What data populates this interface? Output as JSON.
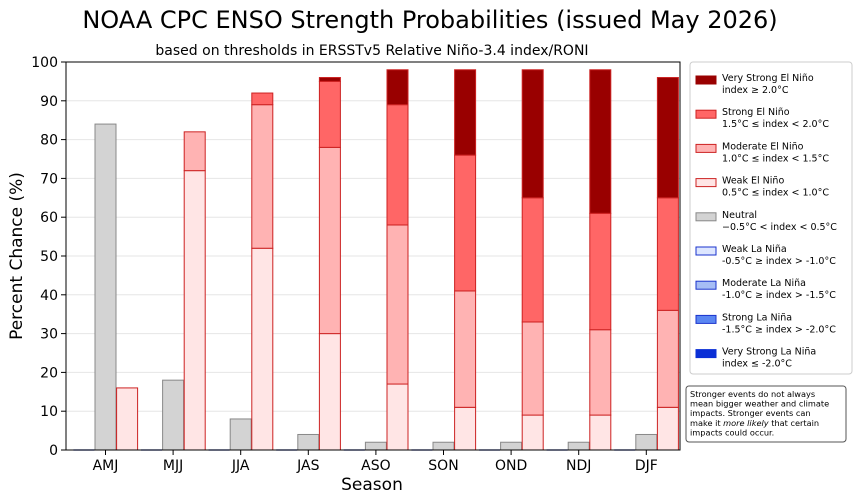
{
  "chart_data": {
    "type": "bar",
    "title": "NOAA CPC ENSO Strength Probabilities (issued May 2026)",
    "subtitle": "based on thresholds in ERSSTv5 Relative Niño-3.4 index/RONI",
    "xlabel": "Season",
    "ylabel": "Percent Chance (%)",
    "ylim": [
      0,
      100
    ],
    "yticks": [
      0,
      10,
      20,
      30,
      40,
      50,
      60,
      70,
      80,
      90,
      100
    ],
    "grid": "horizontal",
    "legend_position": "right",
    "categories": [
      "AMJ",
      "MJJ",
      "JJA",
      "JAS",
      "ASO",
      "SON",
      "OND",
      "NDJ",
      "DJF"
    ],
    "neutral": [
      84,
      18,
      8,
      4,
      2,
      2,
      2,
      2,
      4
    ],
    "la_nina_stack": [
      0,
      0,
      0,
      0,
      0,
      0,
      0,
      0,
      0
    ],
    "el_nino_stack": [
      {
        "name": "Weak El Niño",
        "values": [
          16,
          72,
          52,
          30,
          17,
          11,
          9,
          9,
          11
        ]
      },
      {
        "name": "Moderate El Niño",
        "values": [
          0,
          10,
          37,
          48,
          41,
          30,
          24,
          22,
          25
        ]
      },
      {
        "name": "Strong El Niño",
        "values": [
          0,
          0,
          3,
          17,
          31,
          35,
          32,
          30,
          29
        ]
      },
      {
        "name": "Very Strong El Niño",
        "values": [
          0,
          0,
          0,
          1,
          9,
          22,
          33,
          37,
          31
        ]
      }
    ],
    "legend": [
      {
        "line1": "Very Strong El Niño",
        "line2": "index ≥ 2.0°C",
        "color": "#990000",
        "edge": "#990000"
      },
      {
        "line1": "Strong El Niño",
        "line2": "1.5°C ≤ index < 2.0°C",
        "color": "#ff6666",
        "edge": "#cc2222"
      },
      {
        "line1": "Moderate El Niño",
        "line2": "1.0°C ≤ index < 1.5°C",
        "color": "#ffb3b3",
        "edge": "#cc2222"
      },
      {
        "line1": "Weak El Niño",
        "line2": "0.5°C ≤ index < 1.0°C",
        "color": "#ffe5e5",
        "edge": "#cc2222"
      },
      {
        "line1": "Neutral",
        "line2": "−0.5°C < index < 0.5°C",
        "color": "#d3d3d3",
        "edge": "#888888"
      },
      {
        "line1": "Weak La Niña",
        "line2": "-0.5°C ≥ index > -1.0°C",
        "color": "#dde6ff",
        "edge": "#1a33cc"
      },
      {
        "line1": "Moderate La Niña",
        "line2": "-1.0°C ≥ index > -1.5°C",
        "color": "#a6bdf5",
        "edge": "#1a33cc"
      },
      {
        "line1": "Strong La Niña",
        "line2": "-1.5°C ≥ index > -2.0°C",
        "color": "#5a86f2",
        "edge": "#1a33cc"
      },
      {
        "line1": "Very Strong La Niña",
        "line2": "index ≤ -2.0°C",
        "color": "#0a2fd6",
        "edge": "#0a2fd6"
      }
    ],
    "annotation": [
      "Stronger events do not always",
      "mean bigger weather and climate",
      "impacts. Stronger events can",
      "make it ",
      "more likely",
      " that certain",
      "impacts could occur."
    ],
    "colors": {
      "neutral_fill": "#d3d3d3",
      "neutral_edge": "#888888",
      "el_nino_edge": "#cc2222",
      "la_nina_edge": "#1a33cc",
      "weak_el": "#ffe5e5",
      "moderate_el": "#ffb3b3",
      "strong_el": "#ff6666",
      "very_strong_el": "#990000"
    }
  }
}
